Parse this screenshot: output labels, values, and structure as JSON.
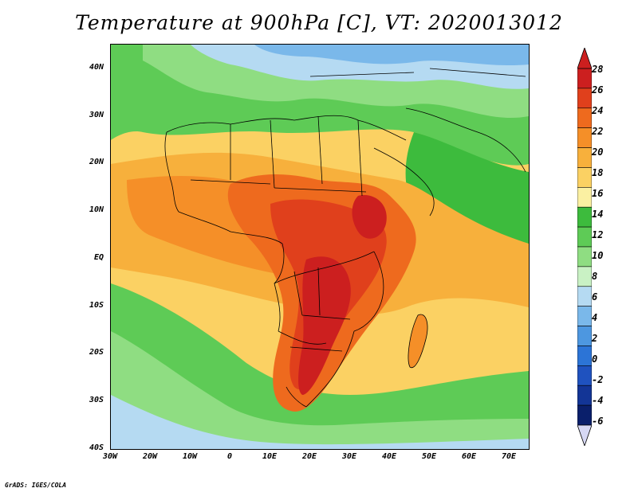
{
  "title": "Temperature at 900hPa [C], VT: 2020013012",
  "credit": "GrADS: IGES/COLA",
  "axes": {
    "lat_labels": [
      "40N",
      "30N",
      "20N",
      "10N",
      "EQ",
      "10S",
      "20S",
      "30S",
      "40S"
    ],
    "lon_labels": [
      "30W",
      "20W",
      "10W",
      "0",
      "10E",
      "20E",
      "30E",
      "40E",
      "50E",
      "60E",
      "70E"
    ]
  },
  "colorbar": {
    "levels": [
      "28",
      "26",
      "24",
      "22",
      "20",
      "18",
      "16",
      "14",
      "12",
      "10",
      "8",
      "6",
      "4",
      "2",
      "0",
      "-2",
      "-4",
      "-6"
    ],
    "colors": [
      "#cc1f1f",
      "#e0401c",
      "#ee6a1e",
      "#f58f28",
      "#f7b03c",
      "#fbd163",
      "#fbf0a2",
      "#3dbb3d",
      "#5ecb56",
      "#8fdd82",
      "#c9f1c4",
      "#b5daf2",
      "#7ab8ea",
      "#4d97e0",
      "#2c74d6",
      "#1f52bf",
      "#133596",
      "#0a1f6b"
    ],
    "top_arrow_color": "#cc1f1f",
    "bottom_arrow_color": "#d6d8f4"
  }
}
